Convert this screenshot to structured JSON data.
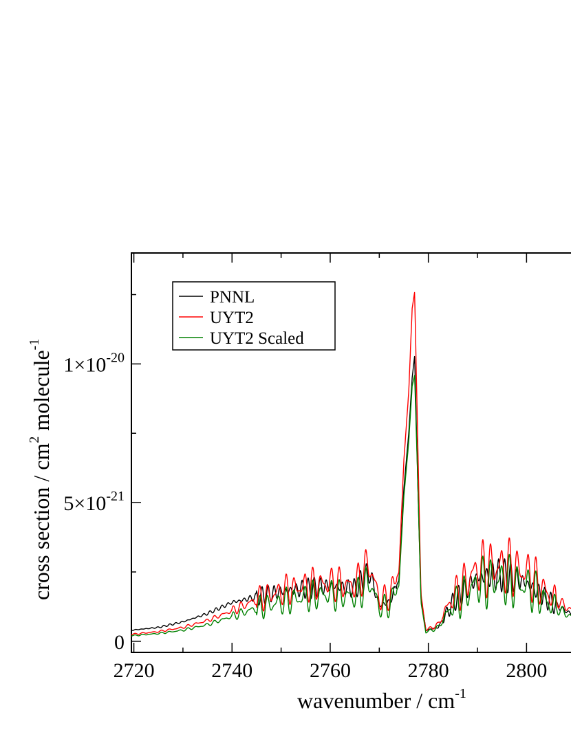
{
  "chart_data": {
    "type": "line",
    "xlabel": "wavenumber / cm",
    "xlabel_sup": "-1",
    "ylabel_parts": [
      "cross section / cm",
      "2",
      " molecule",
      "-1"
    ],
    "xlim": [
      2719.5,
      2812
    ],
    "ylim": [
      -4e-22,
      1.4e-20
    ],
    "x_ticks": [
      {
        "value": 2720,
        "label": "2720"
      },
      {
        "value": 2740,
        "label": "2740"
      },
      {
        "value": 2760,
        "label": "2760"
      },
      {
        "value": 2780,
        "label": "2780"
      },
      {
        "value": 2800,
        "label": "2800"
      }
    ],
    "y_ticks": [
      {
        "value": 0,
        "base": "0",
        "exp": ""
      },
      {
        "value": 5e-21,
        "base": "5×10",
        "exp": "-21"
      },
      {
        "value": 1e-20,
        "base": "1×10",
        "exp": "-20"
      }
    ],
    "legend_position": "top-left",
    "series": [
      {
        "name": "PNNL",
        "color": "#000000",
        "x": [
          2719.5,
          2725,
          2730,
          2735,
          2740,
          2745,
          2750,
          2755,
          2760,
          2765,
          2768,
          2770,
          2772,
          2774,
          2775,
          2776,
          2776.7,
          2777.2,
          2777.8,
          2778.5,
          2779.5,
          2782,
          2785,
          2790,
          2795,
          2800,
          2805,
          2812
        ],
        "y": [
          4e-22,
          5e-22,
          7e-22,
          1e-21,
          1.4e-21,
          1.6e-21,
          1.8e-21,
          1.9e-21,
          2e-21,
          1.9e-21,
          2.5e-21,
          1.3e-21,
          1.4e-21,
          2.2e-21,
          5.5e-21,
          7.5e-21,
          9.5e-21,
          1.03e-20,
          6e-21,
          1.5e-21,
          4e-22,
          5e-22,
          1.4e-21,
          2.3e-21,
          2.4e-21,
          2.1e-21,
          1.4e-21,
          7e-22
        ]
      },
      {
        "name": "UYT2",
        "color": "#ff0000",
        "x": [
          2719.5,
          2725,
          2730,
          2735,
          2740,
          2745,
          2750,
          2755,
          2760,
          2765,
          2768,
          2770,
          2772,
          2774,
          2775,
          2776,
          2776.7,
          2777.2,
          2777.8,
          2778.5,
          2779.5,
          2782,
          2785,
          2790,
          2795,
          2800,
          2805,
          2812
        ],
        "y": [
          2.5e-22,
          3.5e-22,
          5e-22,
          7.5e-22,
          1.1e-21,
          1.5e-21,
          1.8e-21,
          2e-21,
          2.1e-21,
          2e-21,
          2.8e-21,
          1.5e-21,
          1.6e-21,
          2.5e-21,
          6.5e-21,
          9e-21,
          1.2e-20,
          1.26e-20,
          7.5e-21,
          1.7e-21,
          4e-22,
          6e-22,
          1.6e-21,
          2.6e-21,
          2.7e-21,
          2.5e-21,
          1.6e-21,
          8e-22
        ]
      },
      {
        "name": "UYT2 Scaled",
        "color": "#008000",
        "x": [
          2719.5,
          2725,
          2730,
          2735,
          2740,
          2745,
          2750,
          2755,
          2760,
          2765,
          2768,
          2770,
          2772,
          2774,
          2775,
          2776,
          2776.7,
          2777.2,
          2777.8,
          2778.5,
          2779.5,
          2782,
          2785,
          2790,
          2795,
          2800,
          2805,
          2812
        ],
        "y": [
          2e-22,
          2.8e-22,
          4e-22,
          6e-22,
          9e-22,
          1.2e-21,
          1.4e-21,
          1.6e-21,
          1.7e-21,
          1.6e-21,
          2.2e-21,
          1.2e-21,
          1.3e-21,
          2e-21,
          5.2e-21,
          7.2e-21,
          9.2e-21,
          9.6e-21,
          6e-21,
          1.4e-21,
          3.2e-22,
          5e-22,
          1.3e-21,
          2.1e-21,
          2.2e-21,
          2e-21,
          1.3e-21,
          6e-22
        ]
      }
    ]
  }
}
